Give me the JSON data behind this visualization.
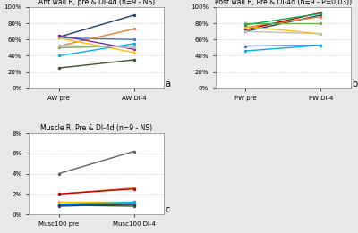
{
  "panel_a": {
    "title": "Ant wall R, pre & DI-4d (n=9 - NS)",
    "xlabel_pre": "AW pre",
    "xlabel_post": "AW DI-4",
    "ylim": [
      0,
      1.0
    ],
    "yticks": [
      0,
      0.2,
      0.4,
      0.6,
      0.8,
      1.0
    ],
    "yticklabels": [
      "0%",
      "20%",
      "40%",
      "60%",
      "80%",
      "100%"
    ],
    "lines": [
      {
        "pre": 0.63,
        "post": 0.9,
        "color": "#1f3d7a"
      },
      {
        "pre": 0.62,
        "post": 0.6,
        "color": "#4472c4"
      },
      {
        "pre": 0.52,
        "post": 0.73,
        "color": "#ed7d31"
      },
      {
        "pre": 0.62,
        "post": 0.44,
        "color": "#ffc000"
      },
      {
        "pre": 0.5,
        "post": 0.52,
        "color": "#70ad47"
      },
      {
        "pre": 0.4,
        "post": 0.55,
        "color": "#00b0f0"
      },
      {
        "pre": 0.65,
        "post": 0.48,
        "color": "#7030a0"
      },
      {
        "pre": 0.25,
        "post": 0.35,
        "color": "#375623"
      },
      {
        "pre": 0.53,
        "post": 0.5,
        "color": "#c0c0c0"
      }
    ]
  },
  "panel_b": {
    "title": "Post wall R, Pre & DI-4d (n=9 - P=0,03))",
    "xlabel_pre": "PW pre",
    "xlabel_post": "PW DI-4",
    "ylim": [
      0,
      1.0
    ],
    "yticks": [
      0,
      0.2,
      0.4,
      0.6,
      0.8,
      1.0
    ],
    "yticklabels": [
      "0%",
      "20%",
      "40%",
      "60%",
      "80%",
      "100%"
    ],
    "lines": [
      {
        "pre": 0.7,
        "post": 0.9,
        "color": "#1f3d7a"
      },
      {
        "pre": 0.52,
        "post": 0.53,
        "color": "#4472c4"
      },
      {
        "pre": 0.75,
        "post": 0.88,
        "color": "#ed7d31"
      },
      {
        "pre": 0.72,
        "post": 0.93,
        "color": "#c00000"
      },
      {
        "pre": 0.8,
        "post": 0.8,
        "color": "#70ad47"
      },
      {
        "pre": 0.46,
        "post": 0.53,
        "color": "#00b0f0"
      },
      {
        "pre": 0.76,
        "post": 0.67,
        "color": "#ffc000"
      },
      {
        "pre": 0.7,
        "post": 0.67,
        "color": "#c0c0c0"
      },
      {
        "pre": 0.78,
        "post": 0.92,
        "color": "#00b050"
      }
    ]
  },
  "panel_c": {
    "title": "Muscle R, Pre & DI-4d (n=9 - NS)",
    "xlabel_pre": "Musc100 pre",
    "xlabel_post": "Musc100 DI-4",
    "ylim": [
      0,
      0.08
    ],
    "yticks": [
      0,
      0.02,
      0.04,
      0.06,
      0.08
    ],
    "yticklabels": [
      "0%",
      "2%",
      "4%",
      "6%",
      "8%"
    ],
    "lines": [
      {
        "pre": 0.04,
        "post": 0.062,
        "color": "#606060"
      },
      {
        "pre": 0.02,
        "post": 0.026,
        "color": "#ed7d31"
      },
      {
        "pre": 0.02,
        "post": 0.025,
        "color": "#c00000"
      },
      {
        "pre": 0.012,
        "post": 0.012,
        "color": "#ffc000"
      },
      {
        "pre": 0.01,
        "post": 0.011,
        "color": "#70ad47"
      },
      {
        "pre": 0.01,
        "post": 0.012,
        "color": "#00b0f0"
      },
      {
        "pre": 0.01,
        "post": 0.01,
        "color": "#4472c4"
      },
      {
        "pre": 0.009,
        "post": 0.008,
        "color": "#375623"
      },
      {
        "pre": 0.008,
        "post": 0.01,
        "color": "#1f3d7a"
      }
    ]
  },
  "bg_color": "#e8e8e8",
  "panel_bg": "#ffffff",
  "label_fontsize": 5.5,
  "title_fontsize": 5.5,
  "tick_fontsize": 5.0,
  "line_width": 1.0,
  "marker_size": 2.5,
  "panel_label_fontsize": 7
}
